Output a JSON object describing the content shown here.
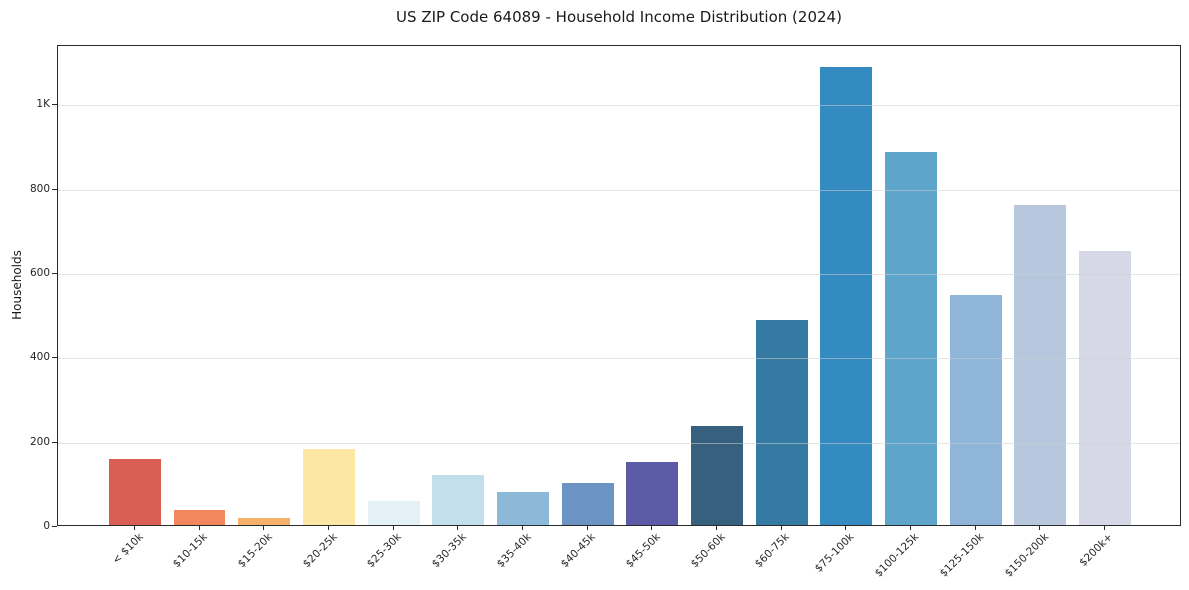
{
  "chart_data": {
    "type": "bar",
    "title": "US ZIP Code 64089 - Household Income Distribution (2024)",
    "xlabel": "",
    "ylabel": "Households",
    "categories": [
      "< $10k",
      "$10-15k",
      "$15-20k",
      "$20-25k",
      "$25-30k",
      "$30-35k",
      "$35-40k",
      "$40-45k",
      "$45-50k",
      "$50-60k",
      "$60-75k",
      "$75-100k",
      "$100-125k",
      "$125-150k",
      "$150-200k",
      "$200k+"
    ],
    "values": [
      156,
      35,
      17,
      181,
      56,
      119,
      78,
      100,
      150,
      235,
      486,
      1086,
      886,
      545,
      760,
      649
    ],
    "bar_colors": [
      "#d95f55",
      "#f2875e",
      "#f7b26a",
      "#fce8a4",
      "#e4f1f6",
      "#c3dfec",
      "#8db9d8",
      "#6b93c4",
      "#5c5ba7",
      "#36607e",
      "#357aa2",
      "#338bbf",
      "#5ea5cb",
      "#8fb6d9",
      "#b7c8de",
      "#d6d7e7"
    ],
    "yticks": [
      {
        "value": 0,
        "label": "0"
      },
      {
        "value": 200,
        "label": "200"
      },
      {
        "value": 400,
        "label": "400"
      },
      {
        "value": 600,
        "label": "600"
      },
      {
        "value": 800,
        "label": "800"
      },
      {
        "value": 1000,
        "label": "1K"
      }
    ],
    "ylim": [
      0,
      1141
    ],
    "grid": "horizontal",
    "legend": "none"
  }
}
